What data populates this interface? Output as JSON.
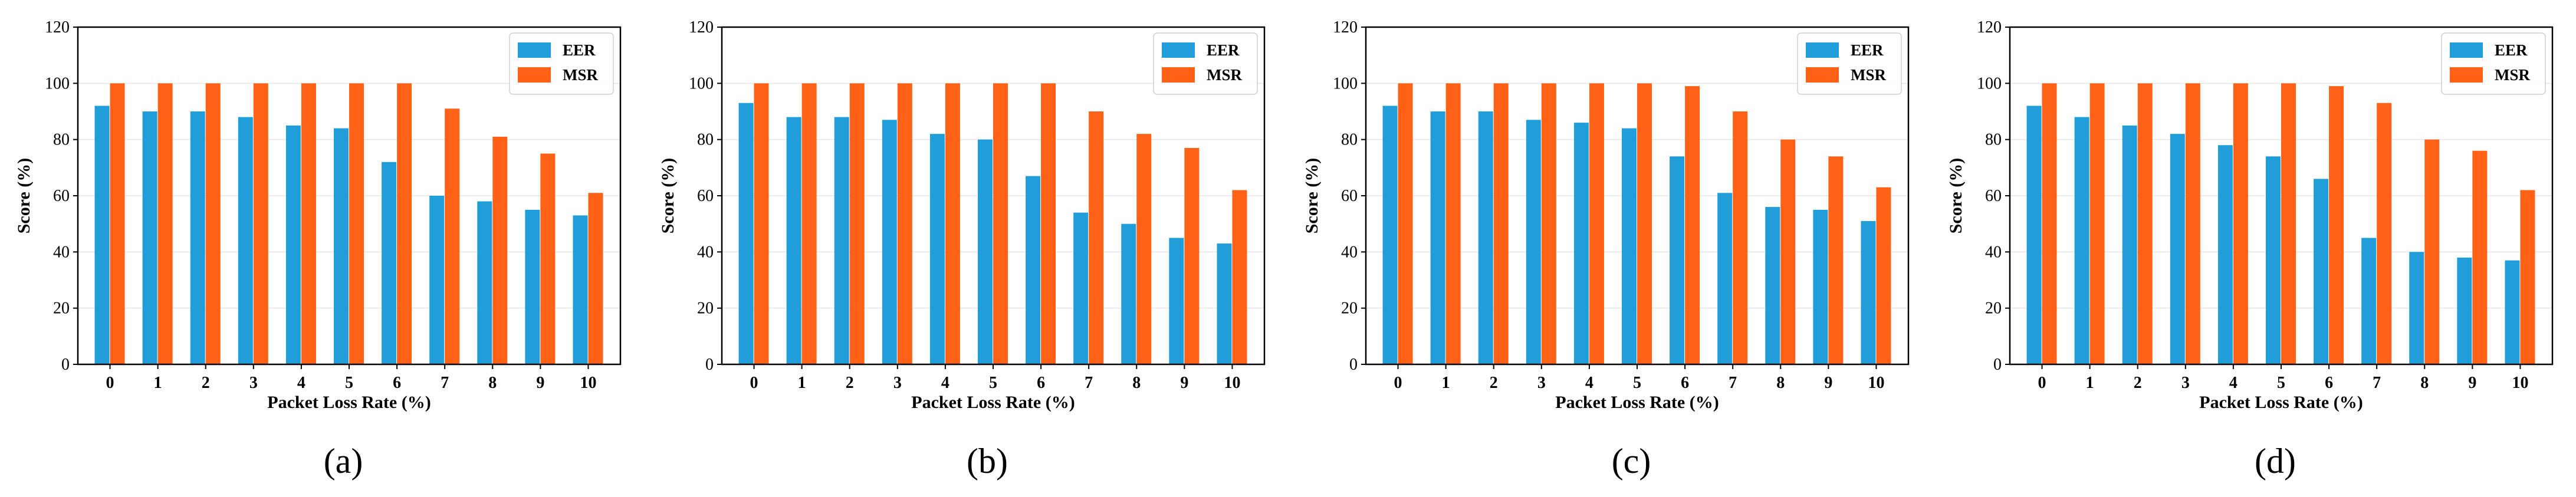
{
  "chart_data": [
    {
      "type": "bar",
      "caption": "(a)",
      "categories": [
        "0",
        "1",
        "2",
        "3",
        "4",
        "5",
        "6",
        "7",
        "8",
        "9",
        "10"
      ],
      "series": [
        {
          "name": "EER",
          "color": "#1f9ed9",
          "values": [
            92,
            90,
            90,
            88,
            85,
            84,
            72,
            60,
            58,
            55,
            53
          ]
        },
        {
          "name": "MSR",
          "color": "#ff6116",
          "values": [
            100,
            100,
            100,
            100,
            100,
            100,
            100,
            91,
            81,
            75,
            61
          ]
        }
      ],
      "xlabel": "Packet Loss Rate (%)",
      "ylabel": "Score (%)",
      "ylim": [
        0,
        120
      ],
      "yticks": [
        "0",
        "20",
        "40",
        "60",
        "80",
        "100",
        "120"
      ],
      "legend_position": "top-right",
      "grid": true
    },
    {
      "type": "bar",
      "caption": "(b)",
      "categories": [
        "0",
        "1",
        "2",
        "3",
        "4",
        "5",
        "6",
        "7",
        "8",
        "9",
        "10"
      ],
      "series": [
        {
          "name": "EER",
          "color": "#1f9ed9",
          "values": [
            93,
            88,
            88,
            87,
            82,
            80,
            67,
            54,
            50,
            45,
            43
          ]
        },
        {
          "name": "MSR",
          "color": "#ff6116",
          "values": [
            100,
            100,
            100,
            100,
            100,
            100,
            100,
            90,
            82,
            77,
            62
          ]
        }
      ],
      "xlabel": "Packet Loss Rate (%)",
      "ylabel": "Score (%)",
      "ylim": [
        0,
        120
      ],
      "yticks": [
        "0",
        "20",
        "40",
        "60",
        "80",
        "100",
        "120"
      ],
      "legend_position": "top-right",
      "grid": true
    },
    {
      "type": "bar",
      "caption": "(c)",
      "categories": [
        "0",
        "1",
        "2",
        "3",
        "4",
        "5",
        "6",
        "7",
        "8",
        "9",
        "10"
      ],
      "series": [
        {
          "name": "EER",
          "color": "#1f9ed9",
          "values": [
            92,
            90,
            90,
            87,
            86,
            84,
            74,
            61,
            56,
            55,
            51
          ]
        },
        {
          "name": "MSR",
          "color": "#ff6116",
          "values": [
            100,
            100,
            100,
            100,
            100,
            100,
            99,
            90,
            80,
            74,
            63
          ]
        }
      ],
      "xlabel": "Packet Loss Rate (%)",
      "ylabel": "Score (%)",
      "ylim": [
        0,
        120
      ],
      "yticks": [
        "0",
        "20",
        "40",
        "60",
        "80",
        "100",
        "120"
      ],
      "legend_position": "top-right",
      "grid": true
    },
    {
      "type": "bar",
      "caption": "(d)",
      "categories": [
        "0",
        "1",
        "2",
        "3",
        "4",
        "5",
        "6",
        "7",
        "8",
        "9",
        "10"
      ],
      "series": [
        {
          "name": "EER",
          "color": "#1f9ed9",
          "values": [
            92,
            88,
            85,
            82,
            78,
            74,
            66,
            45,
            40,
            38,
            37
          ]
        },
        {
          "name": "MSR",
          "color": "#ff6116",
          "values": [
            100,
            100,
            100,
            100,
            100,
            100,
            99,
            93,
            80,
            76,
            62
          ]
        }
      ],
      "xlabel": "Packet Loss Rate (%)",
      "ylabel": "Score (%)",
      "ylim": [
        0,
        120
      ],
      "yticks": [
        "0",
        "20",
        "40",
        "60",
        "80",
        "100",
        "120"
      ],
      "legend_position": "top-right",
      "grid": true
    }
  ]
}
